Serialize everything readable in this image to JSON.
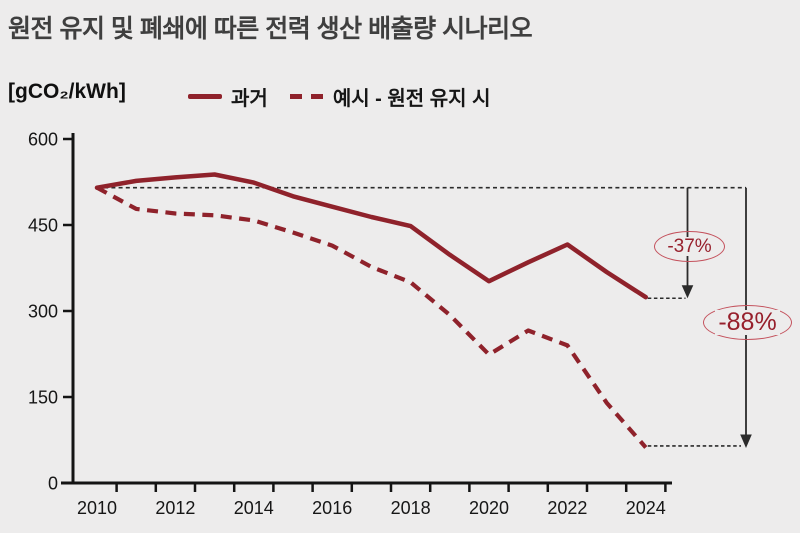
{
  "title": "원전 유지 및 폐쇄에 따른 전력 생산 배출량 시나리오",
  "colors": {
    "background": "#EDECEC",
    "line": "#8F222B",
    "axis": "#141414",
    "tick_label": "#161616",
    "guide": "#2B2B2B",
    "annotation_outline": "#C4525D",
    "annotation_text": "#97202C",
    "title_text": "#3F3F3F"
  },
  "chart_data": {
    "type": "line",
    "title": "원전 유지 및 폐쇄에 따른 전력 생산 배출량 시나리오",
    "ylabel": "[gCO₂/kWh]",
    "xlabel": "",
    "x": [
      2010,
      2011,
      2012,
      2013,
      2014,
      2015,
      2016,
      2017,
      2018,
      2019,
      2020,
      2021,
      2022,
      2023,
      2024
    ],
    "series": [
      {
        "name": "과거",
        "style": "solid",
        "values": [
          515,
          527,
          533,
          538,
          524,
          500,
          482,
          464,
          448,
          398,
          352,
          385,
          416,
          368,
          324
        ]
      },
      {
        "name": "예시 - 원전 유지 시",
        "style": "dashed",
        "values": [
          515,
          478,
          470,
          467,
          458,
          437,
          414,
          377,
          350,
          293,
          224,
          266,
          240,
          140,
          62
        ]
      }
    ],
    "ylim": [
      0,
      600
    ],
    "y_ticks": [
      0,
      150,
      300,
      450,
      600
    ],
    "x_tick_label_years": [
      2010,
      2012,
      2014,
      2016,
      2018,
      2020,
      2022,
      2024
    ],
    "grid": false,
    "legend_position": "top",
    "baseline_value": 515,
    "annotations": [
      {
        "label": "-37%",
        "series": "과거"
      },
      {
        "label": "-88%",
        "series": "예시 - 원전 유지 시"
      }
    ]
  }
}
